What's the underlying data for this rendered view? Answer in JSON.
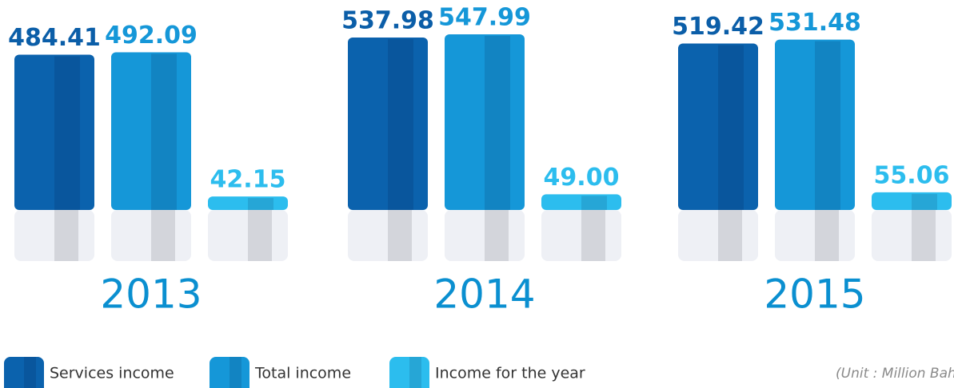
{
  "chart_data": {
    "type": "bar",
    "categories": [
      "2013",
      "2014",
      "2015"
    ],
    "series": [
      {
        "name": "Services income",
        "color": "#0b62ad",
        "values": [
          484.41,
          537.98,
          519.42
        ]
      },
      {
        "name": "Total income",
        "color": "#1597d8",
        "values": [
          492.09,
          547.99,
          531.48
        ]
      },
      {
        "name": "Income for the year",
        "color": "#2cbdee",
        "values": [
          42.15,
          49.0,
          55.06
        ],
        "value_labels": [
          "42.15",
          "49.00",
          "55.06"
        ]
      }
    ],
    "note": "(Unit : Million Baht)"
  }
}
